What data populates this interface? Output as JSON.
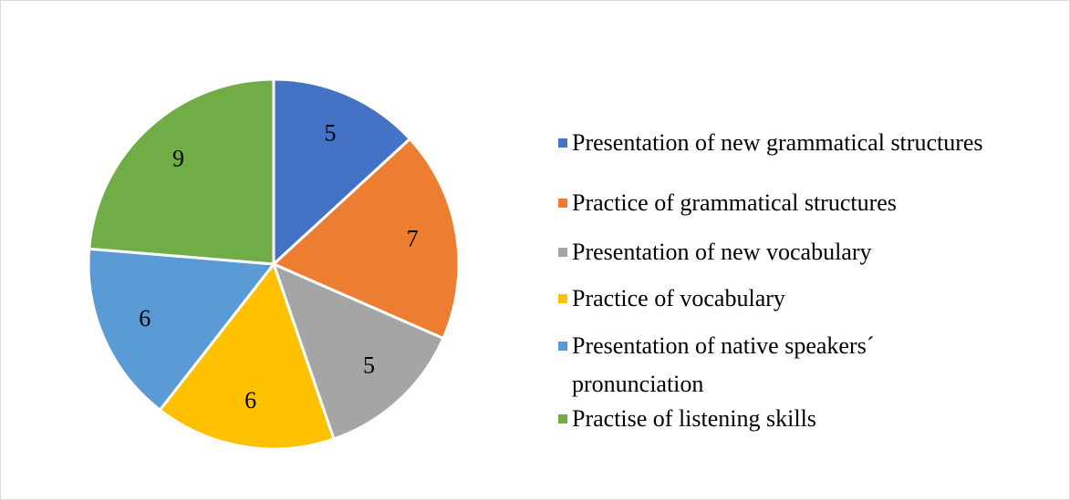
{
  "chart_data": {
    "type": "pie",
    "categories": [
      "Presentation of new grammatical structures",
      "Practice of grammatical structures",
      "Presentation of new vocabulary",
      "Practice of vocabulary",
      "Presentation of native speakers´ pronunciation",
      "Practise of listening skills"
    ],
    "values": [
      5,
      7,
      5,
      6,
      6,
      9
    ],
    "colors": [
      "#4472c4",
      "#ed7d31",
      "#a5a5a5",
      "#ffc000",
      "#5b9bd5",
      "#70ad47"
    ],
    "legend": "right"
  }
}
